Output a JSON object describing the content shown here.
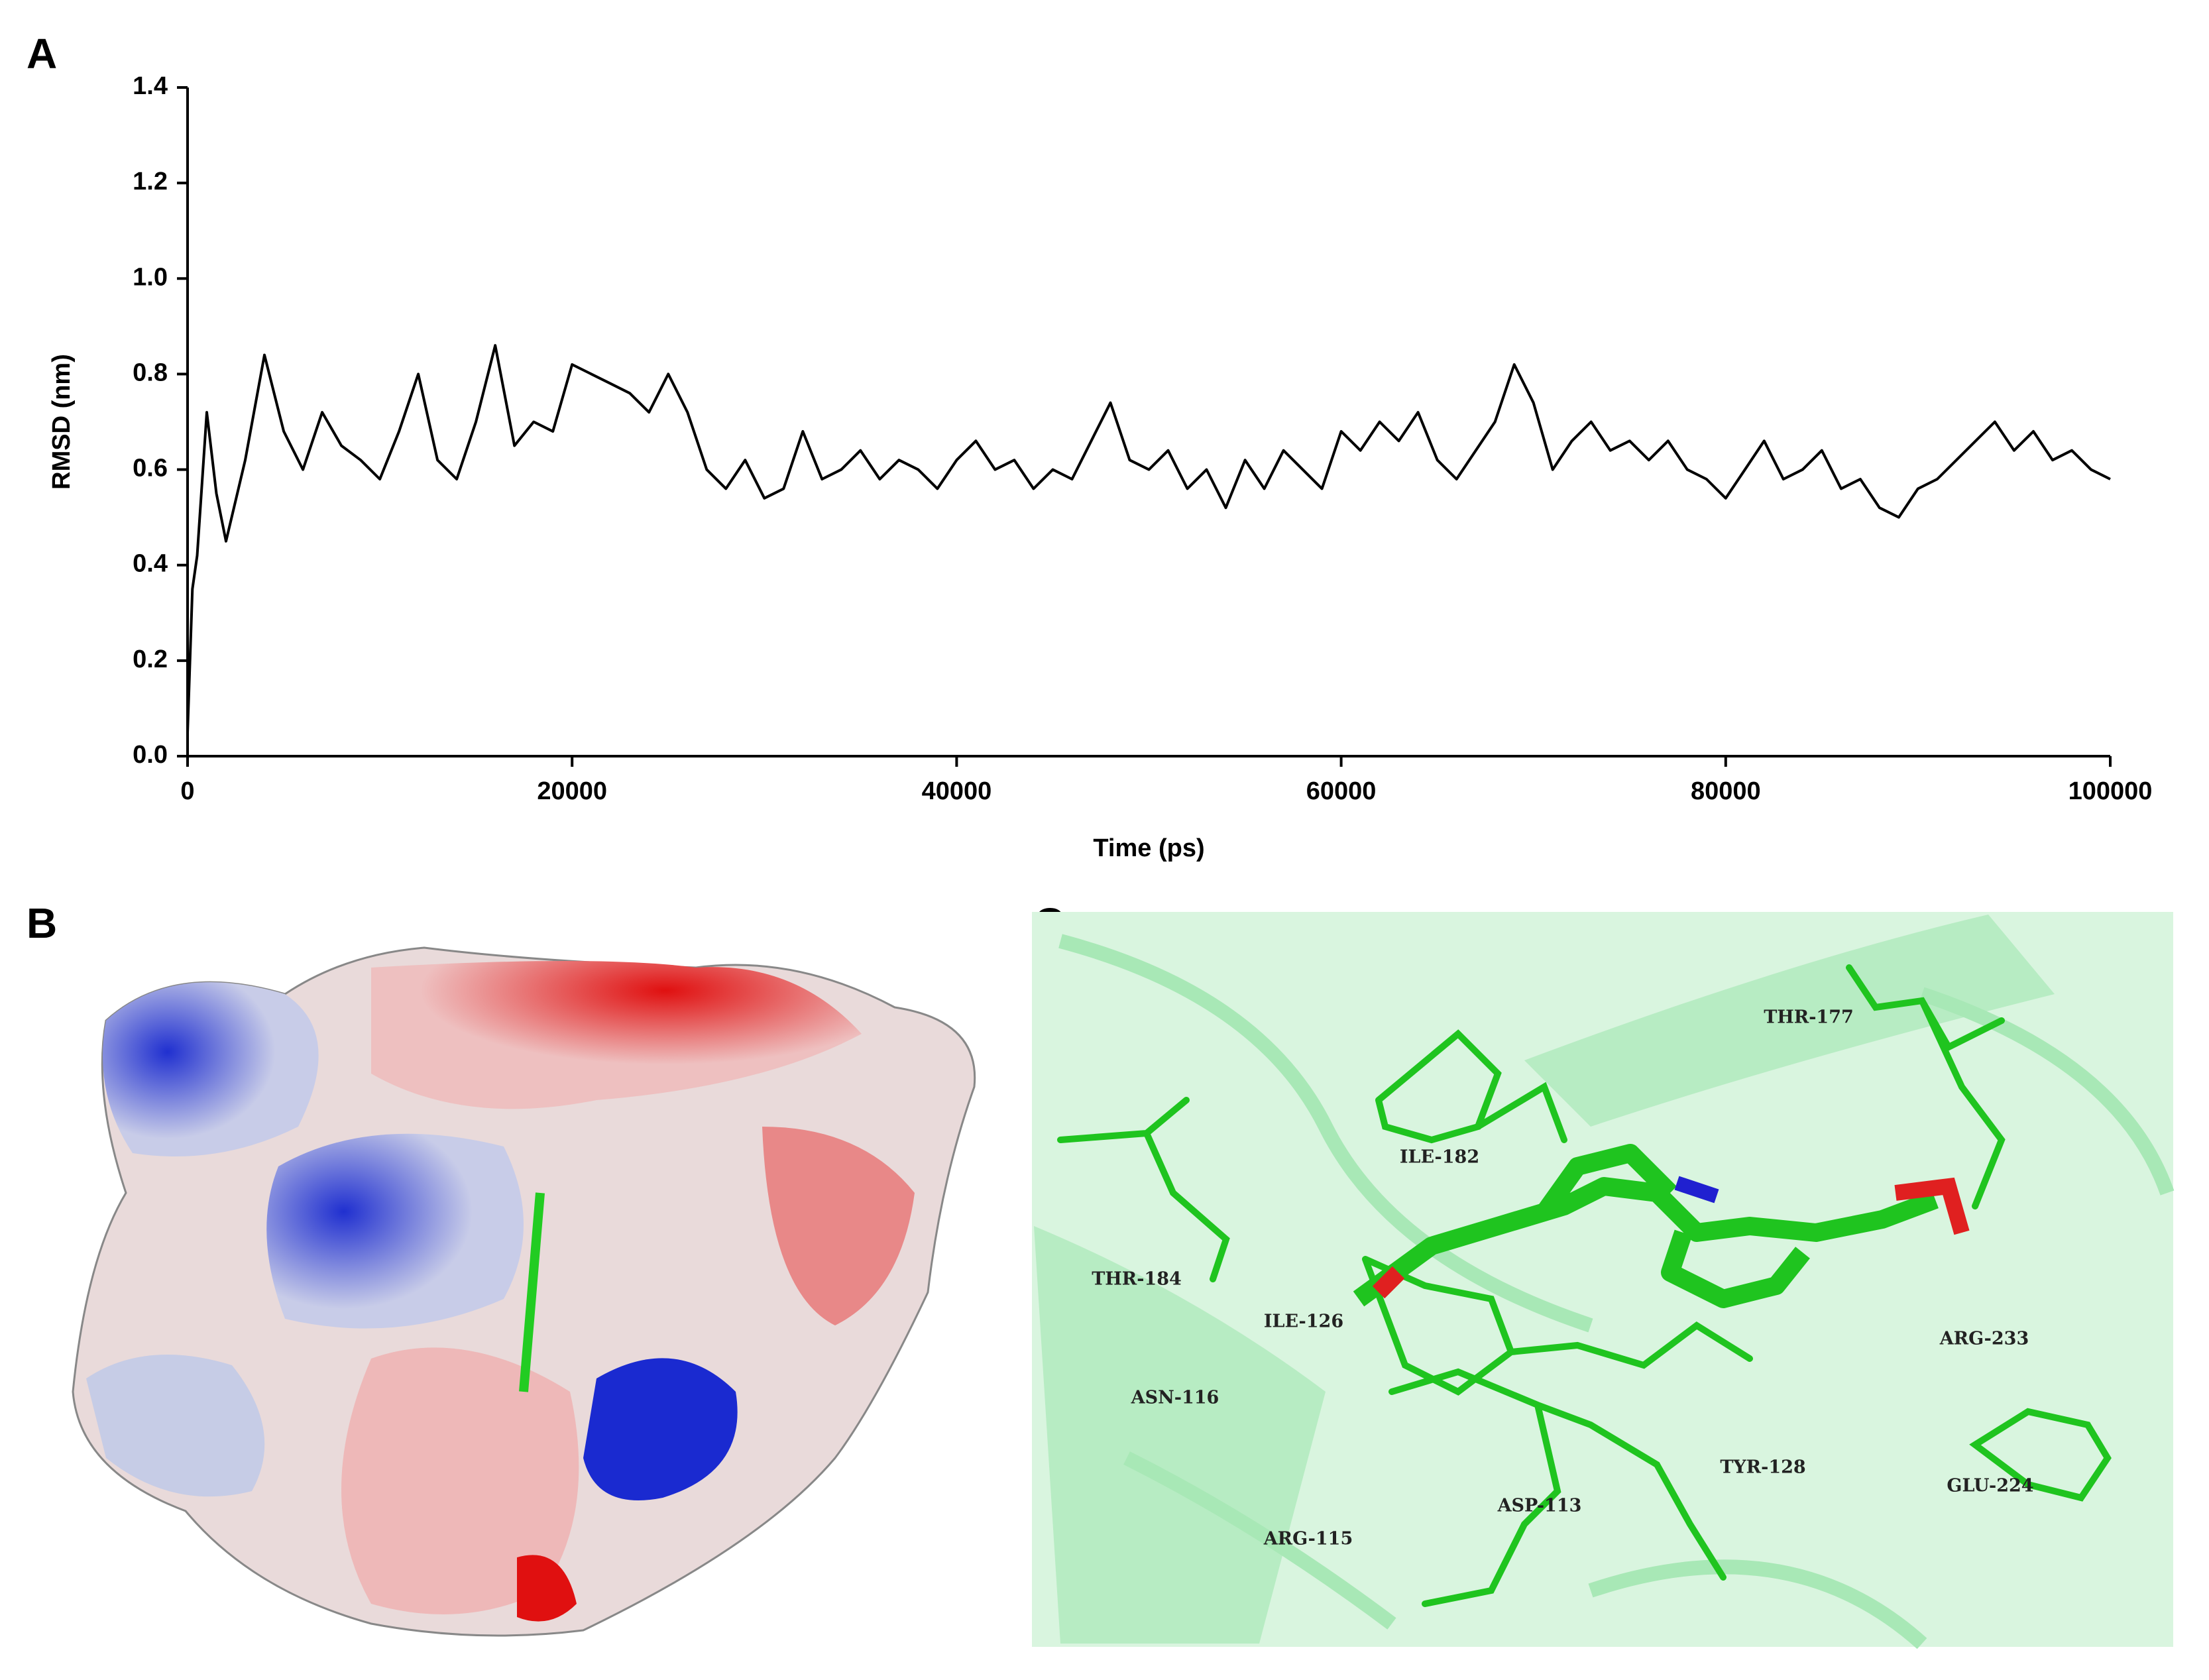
{
  "chart_data": {
    "type": "line",
    "panel_label": "A",
    "xlabel": "Time (ps)",
    "ylabel": "RMSD (nm)",
    "x": [
      0,
      250,
      500,
      1000,
      1500,
      2000,
      3000,
      4000,
      5000,
      6000,
      7000,
      8000,
      9000,
      10000,
      11000,
      12000,
      13000,
      14000,
      15000,
      16000,
      17000,
      18000,
      19000,
      20000,
      21000,
      22000,
      23000,
      24000,
      25000,
      26000,
      27000,
      28000,
      29000,
      30000,
      31000,
      32000,
      33000,
      34000,
      35000,
      36000,
      37000,
      38000,
      39000,
      40000,
      41000,
      42000,
      43000,
      44000,
      45000,
      46000,
      47000,
      48000,
      49000,
      50000,
      51000,
      52000,
      53000,
      54000,
      55000,
      56000,
      57000,
      58000,
      59000,
      60000,
      61000,
      62000,
      63000,
      64000,
      65000,
      66000,
      67000,
      68000,
      69000,
      70000,
      71000,
      72000,
      73000,
      74000,
      75000,
      76000,
      77000,
      78000,
      79000,
      80000,
      81000,
      82000,
      83000,
      84000,
      85000,
      86000,
      87000,
      88000,
      89000,
      90000,
      91000,
      92000,
      93000,
      94000,
      95000,
      96000,
      97000,
      98000,
      99000,
      100000
    ],
    "values": [
      0.05,
      0.35,
      0.42,
      0.72,
      0.55,
      0.45,
      0.62,
      0.84,
      0.68,
      0.6,
      0.72,
      0.65,
      0.62,
      0.58,
      0.68,
      0.8,
      0.62,
      0.58,
      0.7,
      0.86,
      0.65,
      0.7,
      0.68,
      0.82,
      0.8,
      0.78,
      0.76,
      0.72,
      0.8,
      0.72,
      0.6,
      0.56,
      0.62,
      0.54,
      0.56,
      0.68,
      0.58,
      0.6,
      0.64,
      0.58,
      0.62,
      0.6,
      0.56,
      0.62,
      0.66,
      0.6,
      0.62,
      0.56,
      0.6,
      0.58,
      0.66,
      0.74,
      0.62,
      0.6,
      0.64,
      0.56,
      0.6,
      0.52,
      0.62,
      0.56,
      0.64,
      0.6,
      0.56,
      0.68,
      0.64,
      0.7,
      0.66,
      0.72,
      0.62,
      0.58,
      0.64,
      0.7,
      0.82,
      0.74,
      0.6,
      0.66,
      0.7,
      0.64,
      0.66,
      0.62,
      0.66,
      0.6,
      0.58,
      0.54,
      0.6,
      0.66,
      0.58,
      0.6,
      0.64,
      0.56,
      0.58,
      0.52,
      0.5,
      0.56,
      0.58,
      0.62,
      0.66,
      0.7,
      0.64,
      0.68,
      0.62,
      0.64,
      0.6,
      0.58
    ],
    "color": "#000000",
    "xlim": [
      0,
      100000
    ],
    "xticks": [
      0,
      20000,
      40000,
      60000,
      80000,
      100000
    ],
    "ylim": [
      0,
      1.4
    ],
    "yticks": [
      {
        "value": 0,
        "label": "0.0"
      },
      0.2,
      0.4,
      0.6,
      0.8,
      {
        "value": 1,
        "label": "1.0"
      },
      1.2,
      1.4
    ]
  },
  "panels": {
    "b": {
      "label": "B"
    },
    "c": {
      "label": "C",
      "residues": [
        "THR-177",
        "ILE-182",
        "THR-184",
        "ILE-126",
        "ARG-233",
        "ASN-116",
        "TYR-128",
        "GLU-224",
        "ASP-113",
        "ARG-115"
      ]
    }
  }
}
